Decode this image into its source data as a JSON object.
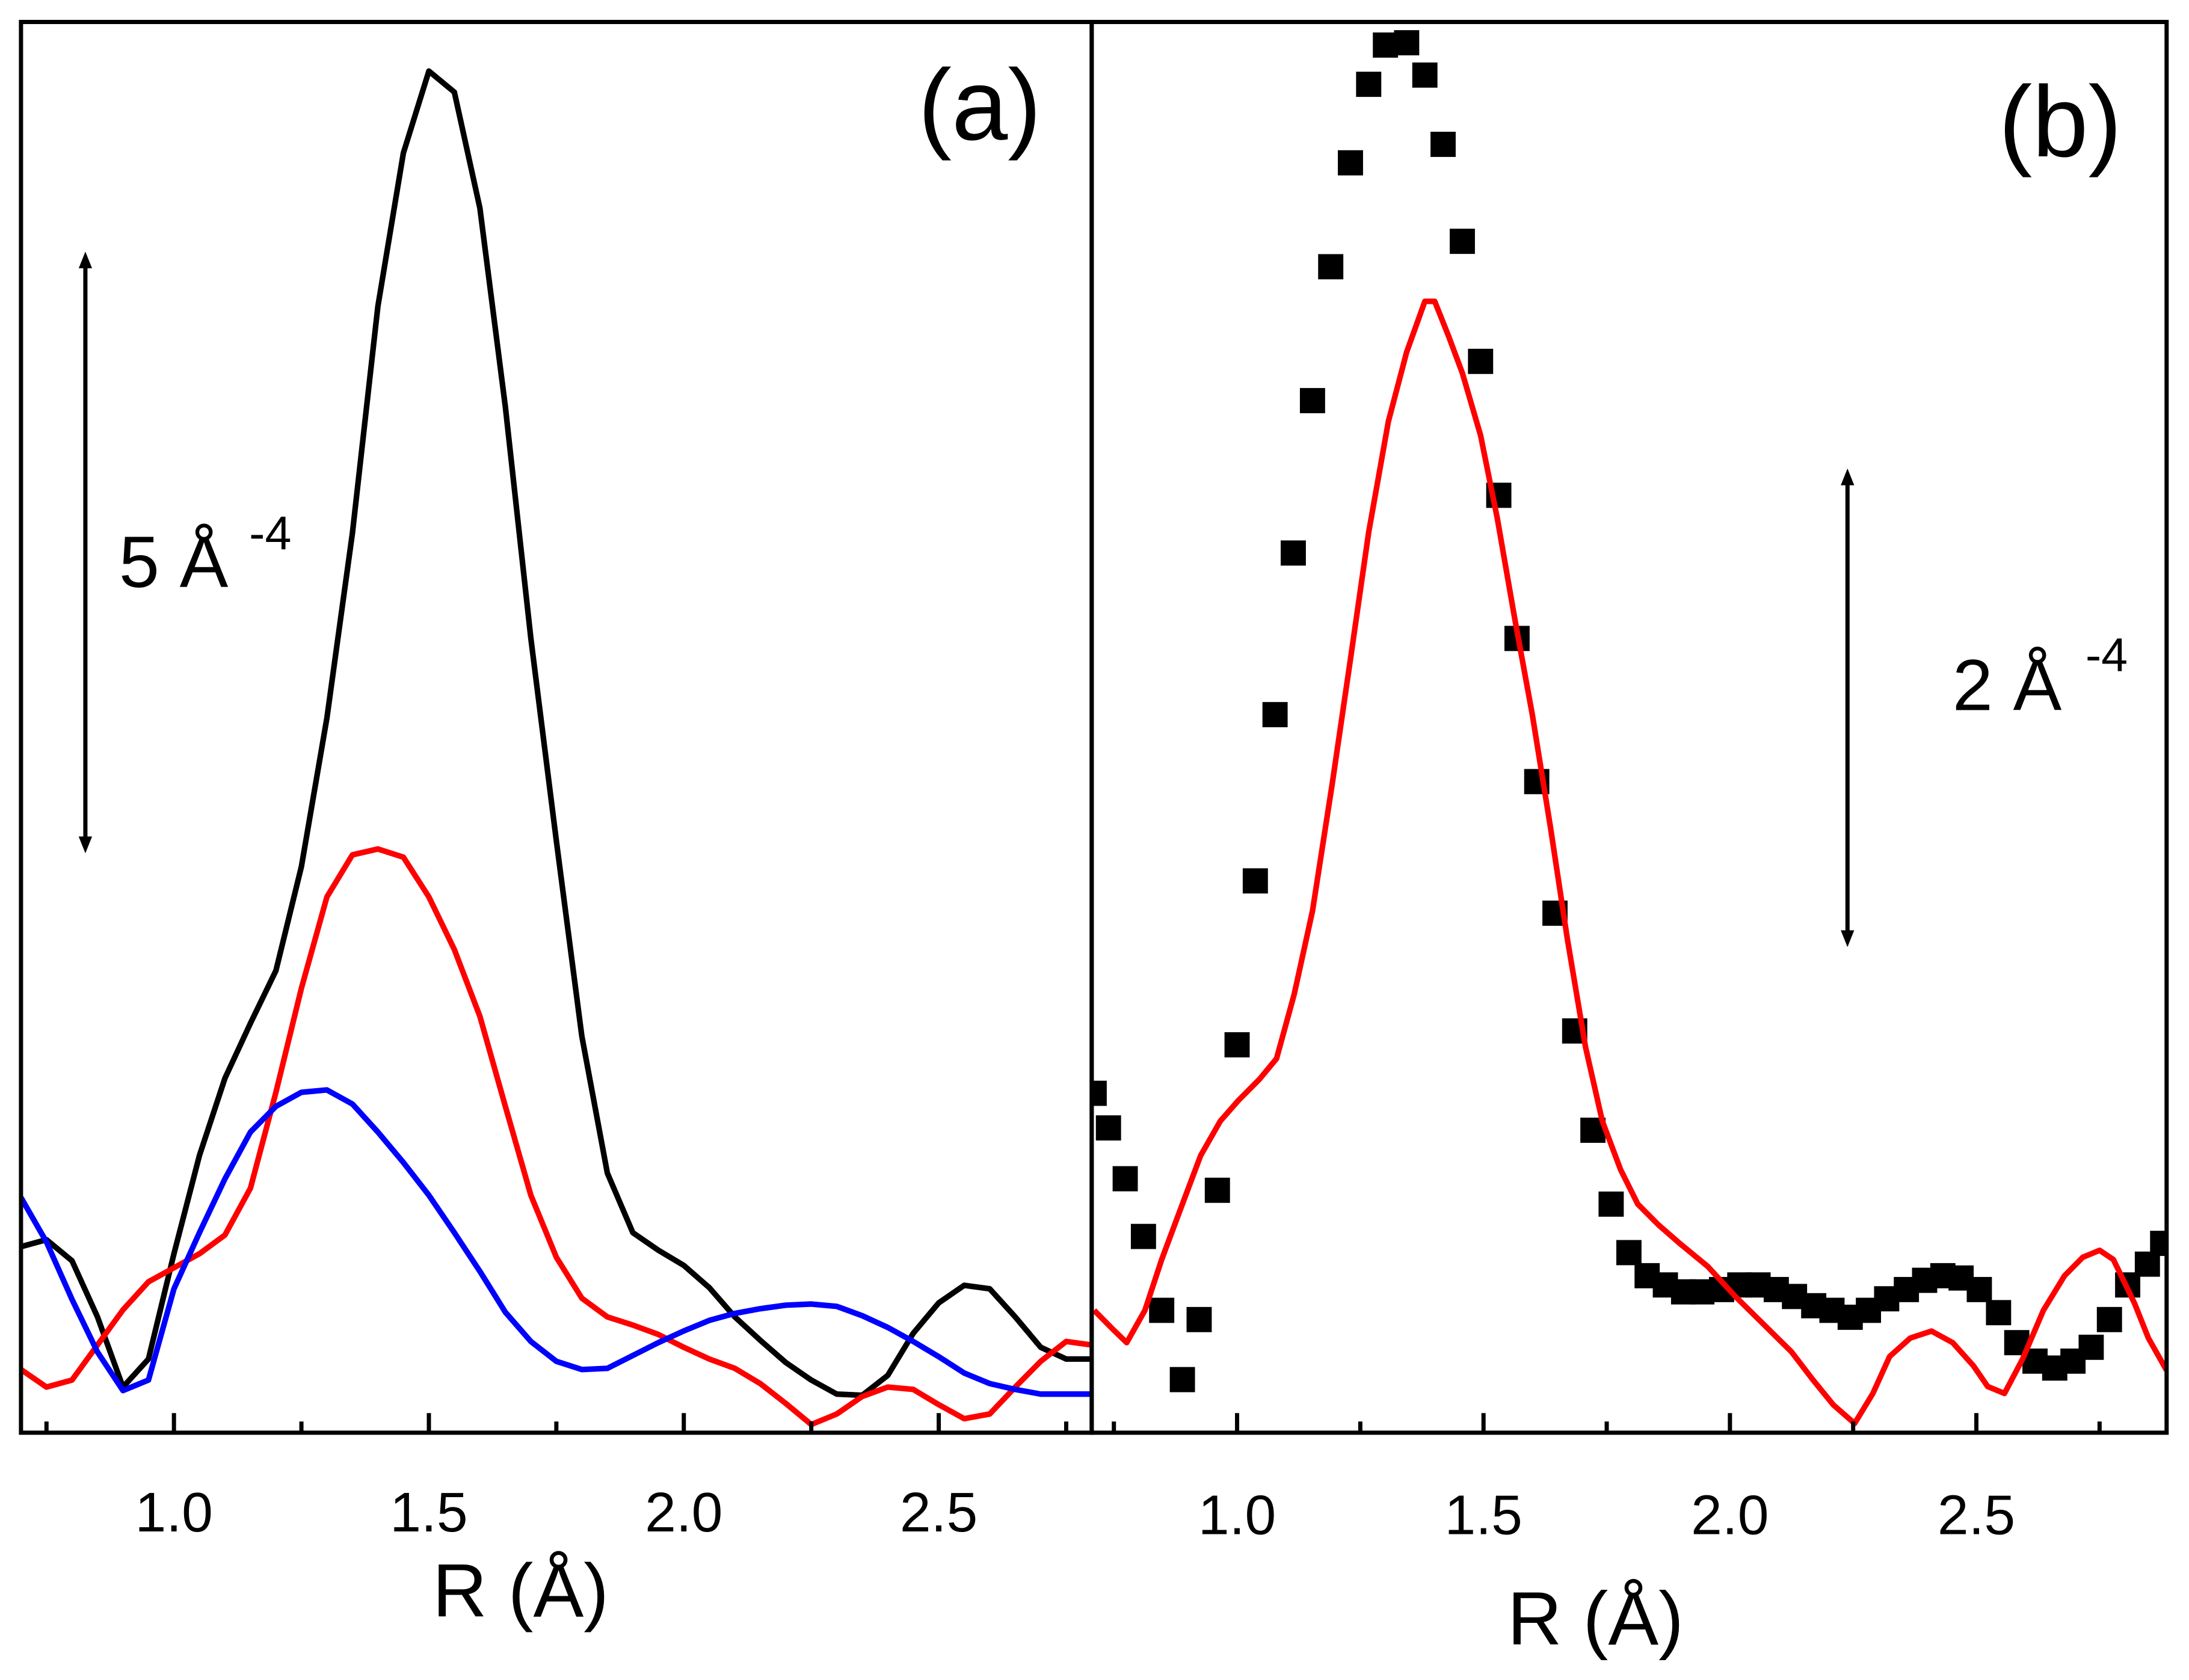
{
  "chart_data": [
    {
      "type": "line",
      "label": "(a)",
      "xlabel": "R (Å)",
      "xlim": [
        0.7,
        2.8
      ],
      "ylim": [
        0,
        12.06
      ],
      "xticks": [
        {
          "value": 1,
          "label": "1.0"
        },
        1.5,
        {
          "value": 2,
          "label": "2.0"
        },
        2.5
      ],
      "xminor": [
        0.75,
        1.25,
        1.75,
        2.25,
        2.75
      ],
      "x": [
        0.7,
        0.75,
        0.8,
        0.85,
        0.9,
        0.95,
        1.0,
        1.05,
        1.1,
        1.15,
        1.2,
        1.25,
        1.3,
        1.35,
        1.4,
        1.45,
        1.5,
        1.55,
        1.6,
        1.65,
        1.7,
        1.75,
        1.8,
        1.85,
        1.9,
        1.95,
        2.0,
        2.05,
        2.1,
        2.15,
        2.2,
        2.25,
        2.3,
        2.35,
        2.4,
        2.45,
        2.5,
        2.55,
        2.6,
        2.65,
        2.7,
        2.75,
        2.8
      ],
      "series": [
        {
          "color": "#000000",
          "values": [
            1.59,
            1.65,
            1.47,
            0.99,
            0.39,
            0.63,
            1.53,
            2.37,
            3.03,
            3.5,
            3.95,
            4.84,
            6.11,
            7.69,
            9.63,
            10.94,
            11.64,
            11.46,
            10.47,
            8.77,
            6.79,
            5.06,
            3.39,
            2.22,
            1.71,
            1.56,
            1.43,
            1.24,
            0.99,
            0.79,
            0.6,
            0.45,
            0.33,
            0.32,
            0.49,
            0.85,
            1.11,
            1.26,
            1.23,
            0.99,
            0.73,
            0.63,
            0.63
          ]
        },
        {
          "color": "#ff0000",
          "values": [
            0.54,
            0.39,
            0.45,
            0.75,
            1.05,
            1.29,
            1.41,
            1.53,
            1.69,
            2.09,
            2.91,
            3.8,
            4.58,
            4.94,
            4.99,
            4.92,
            4.58,
            4.13,
            3.56,
            2.79,
            2.03,
            1.5,
            1.15,
            0.99,
            0.92,
            0.84,
            0.73,
            0.63,
            0.55,
            0.42,
            0.25,
            0.07,
            0.16,
            0.31,
            0.39,
            0.37,
            0.24,
            0.12,
            0.16,
            0.39,
            0.61,
            0.78,
            0.75
          ]
        },
        {
          "color": "#0000ff",
          "values": [
            2.01,
            1.63,
            1.14,
            0.69,
            0.36,
            0.45,
            1.23,
            1.71,
            2.17,
            2.57,
            2.79,
            2.91,
            2.93,
            2.81,
            2.57,
            2.31,
            2.03,
            1.71,
            1.38,
            1.03,
            0.78,
            0.61,
            0.54,
            0.55,
            0.66,
            0.77,
            0.87,
            0.96,
            1.02,
            1.06,
            1.09,
            1.1,
            1.08,
            1.0,
            0.9,
            0.78,
            0.65,
            0.51,
            0.42,
            0.37,
            0.33,
            0.33,
            0.33
          ]
        }
      ],
      "scale_bar": {
        "value": 5,
        "label": "5 Å",
        "superscript": "-4"
      }
    },
    {
      "type": "line",
      "label": "(b)",
      "xlabel": "R (Å)",
      "xlim": [
        0.705,
        2.886
      ],
      "ylim": [
        0,
        6.11
      ],
      "xticks": [
        {
          "value": 1,
          "label": "1.0"
        },
        1.5,
        {
          "value": 2,
          "label": "2.0"
        },
        2.5
      ],
      "xminor": [
        0.75,
        1.25,
        1.75,
        2.25,
        2.75
      ],
      "series": [
        {
          "color": "#000000",
          "marker": "square",
          "x": [
            0.71,
            0.739,
            0.773,
            0.81,
            0.847,
            0.889,
            0.923,
            0.96,
            1.0,
            1.037,
            1.077,
            1.114,
            1.153,
            1.19,
            1.23,
            1.267,
            1.301,
            1.344,
            1.381,
            1.418,
            1.457,
            1.494,
            1.531,
            1.568,
            1.608,
            1.645,
            1.685,
            1.722,
            1.759,
            1.795,
            1.832,
            1.869,
            1.906,
            1.943,
            1.983,
            2.02,
            2.057,
            2.094,
            2.131,
            2.17,
            2.207,
            2.244,
            2.281,
            2.318,
            2.358,
            2.395,
            2.432,
            2.469,
            2.506,
            2.545,
            2.582,
            2.619,
            2.659,
            2.696,
            2.733,
            2.77,
            2.807,
            2.847,
            2.878
          ],
          "values": [
            1.47,
            1.32,
            1.1,
            0.85,
            0.53,
            0.23,
            0.49,
            1.05,
            1.68,
            2.39,
            3.11,
            3.81,
            4.47,
            5.05,
            5.5,
            5.84,
            6.01,
            6.02,
            5.88,
            5.58,
            5.16,
            4.64,
            4.06,
            3.44,
            2.82,
            2.25,
            1.74,
            1.31,
            0.99,
            0.78,
            0.68,
            0.64,
            0.61,
            0.61,
            0.62,
            0.64,
            0.64,
            0.62,
            0.59,
            0.55,
            0.53,
            0.5,
            0.53,
            0.58,
            0.62,
            0.66,
            0.68,
            0.67,
            0.62,
            0.52,
            0.39,
            0.31,
            0.28,
            0.31,
            0.37,
            0.49,
            0.64,
            0.73,
            0.82
          ]
        },
        {
          "color": "#ff0000",
          "x": [
            0.71,
            0.747,
            0.776,
            0.813,
            0.847,
            0.889,
            0.926,
            0.966,
            1.003,
            1.045,
            1.08,
            1.116,
            1.153,
            1.193,
            1.23,
            1.267,
            1.307,
            1.344,
            1.381,
            1.401,
            1.429,
            1.457,
            1.494,
            1.528,
            1.563,
            1.599,
            1.636,
            1.67,
            1.707,
            1.741,
            1.778,
            1.813,
            1.855,
            1.898,
            1.955,
            2.011,
            2.068,
            2.125,
            2.168,
            2.21,
            2.253,
            2.29,
            2.324,
            2.366,
            2.409,
            2.452,
            2.494,
            2.523,
            2.557,
            2.594,
            2.636,
            2.679,
            2.716,
            2.75,
            2.778,
            2.821,
            2.849,
            2.886
          ],
          "values": [
            0.53,
            0.45,
            0.39,
            0.53,
            0.75,
            0.99,
            1.2,
            1.35,
            1.44,
            1.53,
            1.62,
            1.9,
            2.26,
            2.81,
            3.35,
            3.9,
            4.38,
            4.68,
            4.9,
            4.9,
            4.75,
            4.59,
            4.32,
            3.96,
            3.53,
            3.11,
            2.62,
            2.14,
            1.67,
            1.35,
            1.14,
            0.99,
            0.9,
            0.82,
            0.72,
            0.59,
            0.47,
            0.35,
            0.23,
            0.12,
            0.04,
            0.17,
            0.33,
            0.41,
            0.44,
            0.39,
            0.29,
            0.2,
            0.17,
            0.32,
            0.53,
            0.68,
            0.76,
            0.79,
            0.75,
            0.56,
            0.41,
            0.27
          ]
        }
      ],
      "scale_bar": {
        "value": 2,
        "label": "2 Å",
        "superscript": "-4"
      }
    }
  ]
}
